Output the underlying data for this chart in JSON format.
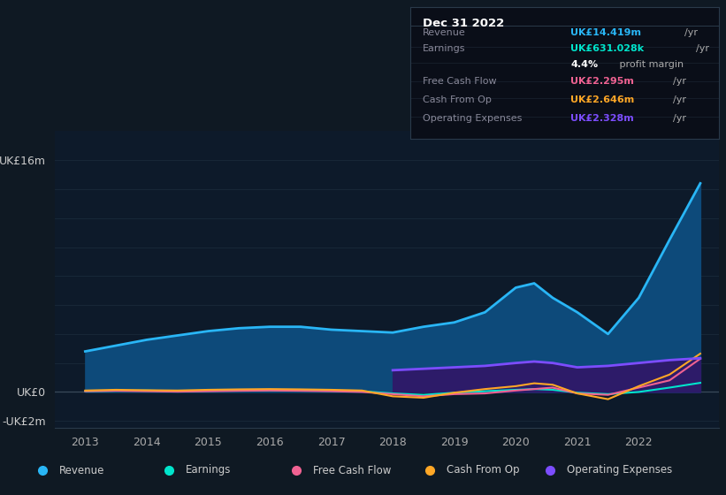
{
  "bg_color": "#0f1923",
  "plot_bg_color": "#0d1a2a",
  "grid_color": "#1a2a3a",
  "years": [
    2013,
    2013.5,
    2014,
    2014.5,
    2015,
    2015.5,
    2016,
    2016.5,
    2017,
    2017.5,
    2018,
    2018.5,
    2019,
    2019.5,
    2020,
    2020.3,
    2020.6,
    2021,
    2021.5,
    2022,
    2022.5,
    2023
  ],
  "revenue": [
    2.8,
    3.2,
    3.6,
    3.9,
    4.2,
    4.4,
    4.5,
    4.5,
    4.3,
    4.2,
    4.1,
    4.5,
    4.8,
    5.5,
    7.2,
    7.5,
    6.5,
    5.5,
    4.0,
    6.5,
    10.5,
    14.4
  ],
  "earnings": [
    0.05,
    0.08,
    0.1,
    0.05,
    0.08,
    0.1,
    0.12,
    0.1,
    0.08,
    0.05,
    -0.1,
    -0.2,
    -0.05,
    0.05,
    0.15,
    0.2,
    0.15,
    -0.05,
    -0.15,
    0.0,
    0.3,
    0.63
  ],
  "free_cash_flow": [
    0.05,
    0.08,
    0.05,
    0.02,
    0.05,
    0.08,
    0.1,
    0.08,
    0.05,
    0.0,
    -0.15,
    -0.3,
    -0.15,
    -0.1,
    0.1,
    0.2,
    0.3,
    -0.1,
    -0.2,
    0.3,
    0.8,
    2.295
  ],
  "cash_from_op": [
    0.1,
    0.15,
    0.12,
    0.1,
    0.15,
    0.18,
    0.2,
    0.18,
    0.15,
    0.1,
    -0.3,
    -0.4,
    -0.05,
    0.2,
    0.4,
    0.6,
    0.5,
    -0.1,
    -0.5,
    0.4,
    1.2,
    2.646
  ],
  "operating_expenses": [
    null,
    null,
    null,
    null,
    null,
    null,
    null,
    null,
    null,
    null,
    1.5,
    1.6,
    1.7,
    1.8,
    2.0,
    2.1,
    2.0,
    1.7,
    1.8,
    2.0,
    2.2,
    2.328
  ],
  "revenue_color": "#29b6f6",
  "earnings_color": "#00e5cc",
  "fcf_color": "#f06292",
  "cashop_color": "#ffa726",
  "opex_color": "#7c4dff",
  "fill_revenue_color": "#0d4a7a",
  "fill_opex_color": "#2d1b69",
  "ylim": [
    -2.5,
    18.0
  ],
  "xlim": [
    2012.5,
    2023.3
  ],
  "xticks": [
    2013,
    2014,
    2015,
    2016,
    2017,
    2018,
    2019,
    2020,
    2021,
    2022
  ],
  "info_box_title": "Dec 31 2022",
  "info_rows": [
    {
      "label": "Revenue",
      "value": "UK£14.419m",
      "unit": "/yr",
      "value_color": "#29b6f6",
      "label_color": "#888899"
    },
    {
      "label": "Earnings",
      "value": "UK£631.028k",
      "unit": "/yr",
      "value_color": "#00e5cc",
      "label_color": "#888899"
    },
    {
      "label": "",
      "value": "4.4%",
      "unit": " profit margin",
      "value_color": "#ffffff",
      "label_color": "#888899"
    },
    {
      "label": "Free Cash Flow",
      "value": "UK£2.295m",
      "unit": "/yr",
      "value_color": "#f06292",
      "label_color": "#888899"
    },
    {
      "label": "Cash From Op",
      "value": "UK£2.646m",
      "unit": "/yr",
      "value_color": "#ffa726",
      "label_color": "#888899"
    },
    {
      "label": "Operating Expenses",
      "value": "UK£2.328m",
      "unit": "/yr",
      "value_color": "#7c4dff",
      "label_color": "#888899"
    }
  ],
  "legend_items": [
    {
      "label": "Revenue",
      "color": "#29b6f6"
    },
    {
      "label": "Earnings",
      "color": "#00e5cc"
    },
    {
      "label": "Free Cash Flow",
      "color": "#f06292"
    },
    {
      "label": "Cash From Op",
      "color": "#ffa726"
    },
    {
      "label": "Operating Expenses",
      "color": "#7c4dff"
    }
  ]
}
